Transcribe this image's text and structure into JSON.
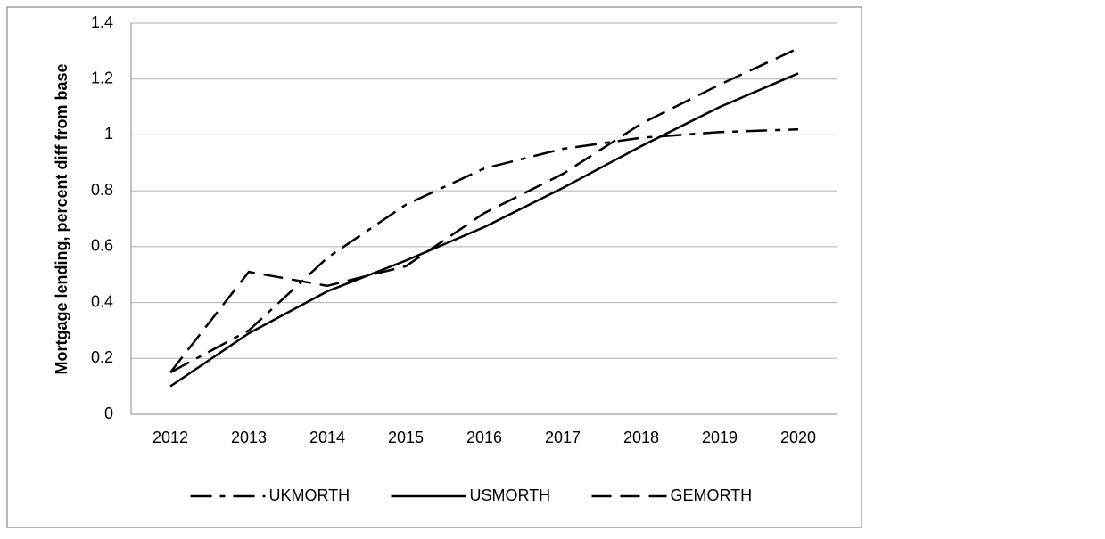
{
  "chart_data": {
    "type": "line",
    "ylabel": "Mortgage lending, percent diff from base",
    "categories": [
      "2012",
      "2013",
      "2014",
      "2015",
      "2016",
      "2017",
      "2018",
      "2019",
      "2020"
    ],
    "series": [
      {
        "name": "UKMORTH",
        "color": "#000000",
        "dash": "dashdot",
        "values": [
          0.15,
          0.3,
          0.56,
          0.75,
          0.88,
          0.95,
          0.99,
          1.01,
          1.02
        ]
      },
      {
        "name": "USMORTH",
        "color": "#000000",
        "dash": "solid",
        "values": [
          0.1,
          0.29,
          0.44,
          0.55,
          0.67,
          0.81,
          0.96,
          1.1,
          1.22
        ]
      },
      {
        "name": "GEMORTH",
        "color": "#000000",
        "dash": "dashed",
        "values": [
          0.15,
          0.51,
          0.46,
          0.53,
          0.72,
          0.86,
          1.04,
          1.18,
          1.31
        ]
      }
    ],
    "ylim": [
      0,
      1.4
    ],
    "yticks": [
      0,
      0.2,
      0.4,
      0.6,
      0.8,
      1,
      1.2,
      1.4
    ],
    "grid": true,
    "legend": "bottom"
  }
}
